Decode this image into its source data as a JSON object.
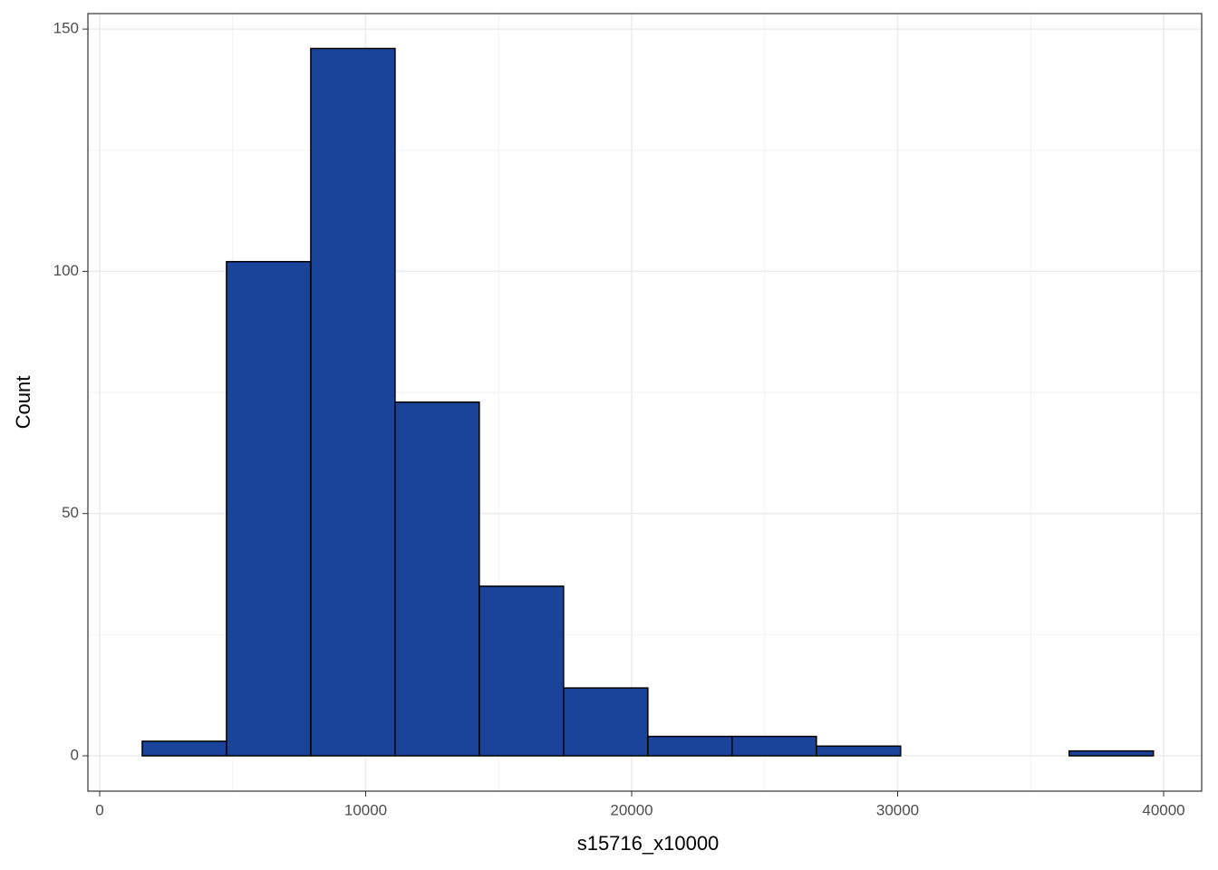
{
  "chart_data": {
    "type": "histogram",
    "x_label": "s15716_x10000",
    "y_label": "Count",
    "bins": [
      1600,
      4768,
      7936,
      11104,
      14272,
      17440,
      20608,
      23776,
      26944,
      30112,
      33280,
      36448,
      39616
    ],
    "values": [
      3,
      102,
      146,
      73,
      35,
      14,
      4,
      4,
      2,
      0,
      0,
      1
    ],
    "color": "#1a449a",
    "edge_color": "#000000",
    "xlim": [
      -443,
      41431
    ],
    "ylim": [
      -7.3,
      153.2
    ],
    "xticks": [
      0,
      10000,
      20000,
      30000,
      40000
    ],
    "yticks": [
      0,
      50,
      100,
      150
    ],
    "grid": true
  }
}
